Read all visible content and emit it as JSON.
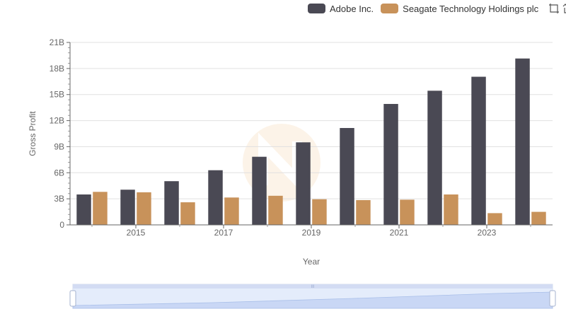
{
  "legend": {
    "series_a": {
      "label": "Adobe Inc.",
      "color": "#4a4954"
    },
    "series_b": {
      "label": "Seagate Technology Holdings plc",
      "color": "#c8925a"
    }
  },
  "toolbox": {
    "icons": [
      "zoom-select-icon",
      "zoom-reset-icon"
    ]
  },
  "chart_data": {
    "type": "bar",
    "xlabel": "Year",
    "ylabel": "Gross Profit",
    "categories": [
      "2014",
      "2015",
      "2016",
      "2017",
      "2018",
      "2019",
      "2020",
      "2021",
      "2022",
      "2023",
      "2024"
    ],
    "x_tick_labels": [
      "2015",
      "2017",
      "2019",
      "2021",
      "2023"
    ],
    "y_tick_labels": [
      "0",
      "3B",
      "6B",
      "9B",
      "12B",
      "15B",
      "18B",
      "21B"
    ],
    "ylim": [
      0,
      21
    ],
    "series": [
      {
        "name": "Adobe Inc.",
        "color": "#4a4954",
        "values": [
          3.5,
          4.05,
          5.03,
          6.29,
          7.84,
          9.5,
          11.15,
          13.92,
          15.44,
          17.05,
          19.15
        ]
      },
      {
        "name": "Seagate Technology Holdings plc",
        "color": "#c8925a",
        "values": [
          3.8,
          3.75,
          2.6,
          3.15,
          3.35,
          2.95,
          2.85,
          2.9,
          3.5,
          1.35,
          1.5
        ]
      }
    ],
    "grid": true,
    "legend_position": "top-right"
  },
  "datazoom": {
    "handle_label": "III"
  }
}
